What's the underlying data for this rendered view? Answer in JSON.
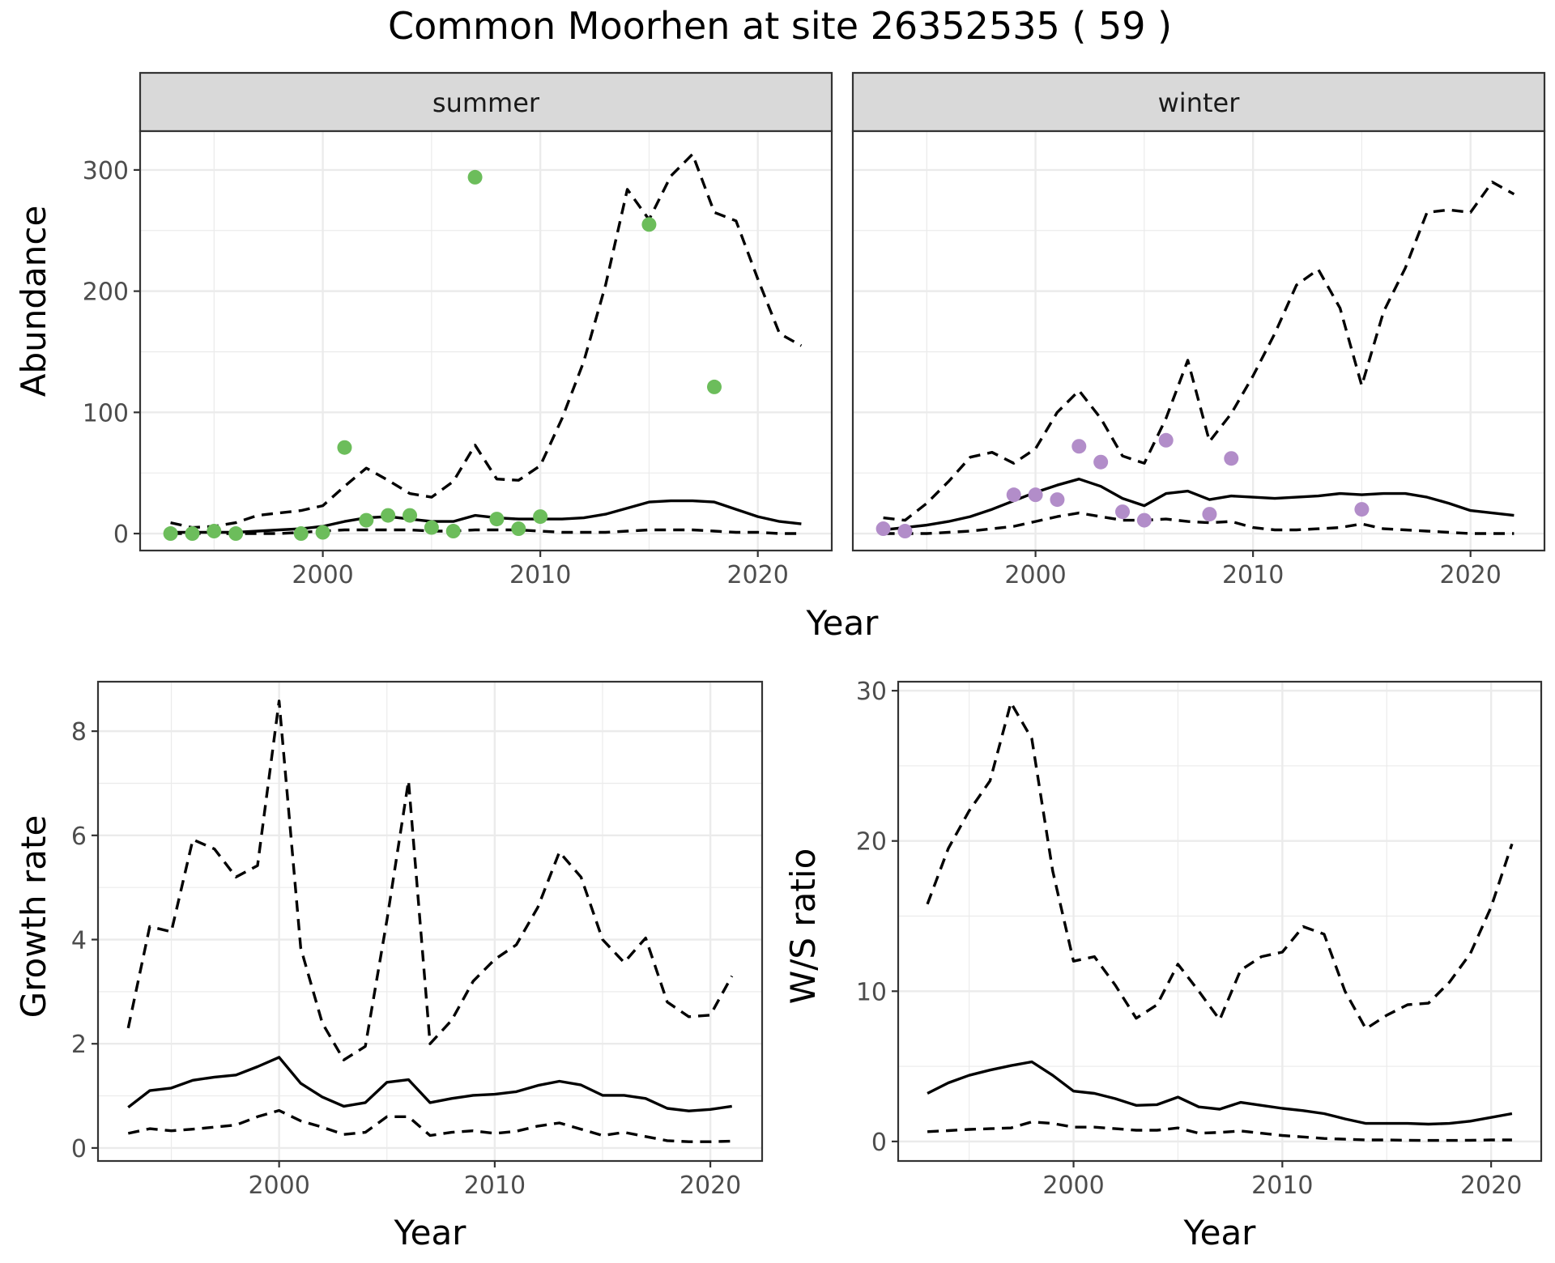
{
  "title": "Common Moorhen at site 26352535 ( 59 )",
  "colors": {
    "summer_points": "#6cbd5b",
    "winter_points": "#b28dc9",
    "lines": "#000000"
  },
  "chart_data": [
    {
      "id": "summer",
      "type": "line",
      "strip": "summer",
      "xlabel": "Year",
      "ylabel": "Abundance",
      "xlim": [
        1991.6,
        2023.4
      ],
      "ylim": [
        -14,
        332
      ],
      "x_ticks": [
        2000,
        2010,
        2020
      ],
      "y_ticks": [
        0,
        100,
        200,
        300
      ],
      "grid": true,
      "series": [
        {
          "style": "solid",
          "x": [
            1993,
            1994,
            1995,
            1996,
            1997,
            1998,
            1999,
            2000,
            2001,
            2002,
            2003,
            2004,
            2005,
            2006,
            2007,
            2008,
            2009,
            2010,
            2011,
            2012,
            2013,
            2014,
            2015,
            2016,
            2017,
            2018,
            2019,
            2020,
            2021,
            2022
          ],
          "y": [
            1,
            1,
            1,
            1,
            2,
            3,
            4,
            6,
            10,
            13,
            14,
            12,
            10,
            10,
            15,
            13,
            12,
            12,
            12,
            13,
            16,
            21,
            26,
            27,
            27,
            26,
            20,
            14,
            10,
            8
          ]
        },
        {
          "style": "dashed",
          "x": [
            1993,
            1994,
            1995,
            1996,
            1997,
            1998,
            1999,
            2000,
            2001,
            2002,
            2003,
            2004,
            2005,
            2006,
            2007,
            2008,
            2009,
            2010,
            2011,
            2012,
            2013,
            2014,
            2015,
            2016,
            2017,
            2018,
            2019,
            2020,
            2021,
            2022
          ],
          "y": [
            9,
            5,
            6,
            9,
            15,
            17,
            19,
            23,
            39,
            54,
            44,
            33,
            30,
            43,
            73,
            45,
            44,
            56,
            95,
            142,
            205,
            284,
            259,
            295,
            313,
            265,
            258,
            210,
            165,
            155
          ]
        },
        {
          "style": "dashed",
          "x": [
            1993,
            1994,
            1995,
            1996,
            1997,
            1998,
            1999,
            2000,
            2001,
            2002,
            2003,
            2004,
            2005,
            2006,
            2007,
            2008,
            2009,
            2010,
            2011,
            2012,
            2013,
            2014,
            2015,
            2016,
            2017,
            2018,
            2019,
            2020,
            2021,
            2022
          ],
          "y": [
            0,
            0,
            0,
            0,
            0,
            0,
            1,
            2,
            3,
            3,
            3,
            3,
            2,
            2,
            3,
            3,
            3,
            2,
            1,
            1,
            1,
            2,
            3,
            3,
            3,
            2,
            1,
            1,
            0,
            0
          ]
        }
      ],
      "points": {
        "x": [
          1993,
          1994,
          1995,
          1996,
          1999,
          2000,
          2001,
          2002,
          2003,
          2004,
          2005,
          2006,
          2007,
          2008,
          2009,
          2010,
          2015,
          2018
        ],
        "y": [
          0,
          0,
          2,
          0,
          0,
          1,
          71,
          11,
          15,
          15,
          5,
          2,
          294,
          12,
          4,
          14,
          255,
          121
        ]
      }
    },
    {
      "id": "winter",
      "type": "line",
      "strip": "winter",
      "xlabel": "Year",
      "ylabel": "",
      "xlim": [
        1991.6,
        2023.4
      ],
      "ylim": [
        -14,
        332
      ],
      "x_ticks": [
        2000,
        2010,
        2020
      ],
      "y_ticks": [
        0,
        100,
        200,
        300
      ],
      "grid": true,
      "series": [
        {
          "style": "solid",
          "x": [
            1993,
            1994,
            1995,
            1996,
            1997,
            1998,
            1999,
            2000,
            2001,
            2002,
            2003,
            2004,
            2005,
            2006,
            2007,
            2008,
            2009,
            2010,
            2011,
            2012,
            2013,
            2014,
            2015,
            2016,
            2017,
            2018,
            2019,
            2020,
            2021,
            2022
          ],
          "y": [
            3,
            5,
            7,
            10,
            14,
            20,
            27,
            34,
            40,
            45,
            39,
            29,
            23,
            33,
            35,
            28,
            31,
            30,
            29,
            30,
            31,
            33,
            32,
            33,
            33,
            30,
            25,
            19,
            17,
            15
          ]
        },
        {
          "style": "dashed",
          "x": [
            1993,
            1994,
            1995,
            1996,
            1997,
            1998,
            1999,
            2000,
            2001,
            2002,
            2003,
            2004,
            2005,
            2006,
            2007,
            2008,
            2009,
            2010,
            2011,
            2012,
            2013,
            2014,
            2015,
            2016,
            2017,
            2018,
            2019,
            2020,
            2021,
            2022
          ],
          "y": [
            13,
            11,
            25,
            43,
            63,
            67,
            58,
            70,
            100,
            118,
            95,
            64,
            58,
            95,
            143,
            76,
            99,
            130,
            165,
            205,
            218,
            186,
            122,
            183,
            219,
            265,
            267,
            265,
            290,
            280
          ]
        },
        {
          "style": "dashed",
          "x": [
            1993,
            1994,
            1995,
            1996,
            1997,
            1998,
            1999,
            2000,
            2001,
            2002,
            2003,
            2004,
            2005,
            2006,
            2007,
            2008,
            2009,
            2010,
            2011,
            2012,
            2013,
            2014,
            2015,
            2016,
            2017,
            2018,
            2019,
            2020,
            2021,
            2022
          ],
          "y": [
            0,
            0,
            0,
            1,
            2,
            4,
            6,
            10,
            14,
            17,
            14,
            11,
            11,
            12,
            10,
            9,
            10,
            5,
            3,
            3,
            4,
            5,
            8,
            4,
            3,
            2,
            1,
            0,
            0,
            0
          ]
        }
      ],
      "points": {
        "x": [
          1993,
          1994,
          1999,
          2000,
          2001,
          2002,
          2003,
          2004,
          2005,
          2006,
          2008,
          2009,
          2015
        ],
        "y": [
          4,
          2,
          32,
          32,
          28,
          72,
          59,
          18,
          11,
          77,
          16,
          62,
          20
        ]
      }
    },
    {
      "id": "growth",
      "type": "line",
      "xlabel": "Year",
      "ylabel": "Growth rate",
      "xlim": [
        1991.6,
        2022.4
      ],
      "ylim": [
        -0.25,
        8.95
      ],
      "x_ticks": [
        2000,
        2010,
        2020
      ],
      "y_ticks": [
        0,
        2,
        4,
        6,
        8
      ],
      "grid": true,
      "series": [
        {
          "style": "solid",
          "x": [
            1993,
            1994,
            1995,
            1996,
            1997,
            1998,
            1999,
            2000,
            2001,
            2002,
            2003,
            2004,
            2005,
            2006,
            2007,
            2008,
            2009,
            2010,
            2011,
            2012,
            2013,
            2014,
            2015,
            2016,
            2017,
            2018,
            2019,
            2020,
            2021
          ],
          "y": [
            0.78,
            1.1,
            1.15,
            1.3,
            1.36,
            1.4,
            1.56,
            1.74,
            1.24,
            0.98,
            0.8,
            0.87,
            1.26,
            1.31,
            0.87,
            0.95,
            1.01,
            1.03,
            1.08,
            1.2,
            1.28,
            1.21,
            1.01,
            1.01,
            0.95,
            0.76,
            0.71,
            0.74,
            0.8
          ]
        },
        {
          "style": "dashed",
          "x": [
            1993,
            1994,
            1995,
            1996,
            1997,
            1998,
            1999,
            2000,
            2001,
            2002,
            2003,
            2004,
            2005,
            2006,
            2007,
            2008,
            2009,
            2010,
            2011,
            2012,
            2013,
            2014,
            2015,
            2016,
            2017,
            2018,
            2019,
            2020,
            2021
          ],
          "y": [
            2.3,
            4.25,
            4.15,
            5.92,
            5.74,
            5.2,
            5.42,
            8.58,
            3.84,
            2.4,
            1.69,
            1.95,
            4.38,
            7.05,
            2.0,
            2.45,
            3.2,
            3.62,
            3.9,
            4.62,
            5.68,
            5.2,
            4.0,
            3.56,
            4.03,
            2.8,
            2.52,
            2.55,
            3.3
          ]
        },
        {
          "style": "dashed",
          "x": [
            1993,
            1994,
            1995,
            1996,
            1997,
            1998,
            1999,
            2000,
            2001,
            2002,
            2003,
            2004,
            2005,
            2006,
            2007,
            2008,
            2009,
            2010,
            2011,
            2012,
            2013,
            2014,
            2015,
            2016,
            2017,
            2018,
            2019,
            2020,
            2021
          ],
          "y": [
            0.28,
            0.37,
            0.33,
            0.36,
            0.4,
            0.44,
            0.6,
            0.72,
            0.52,
            0.4,
            0.26,
            0.3,
            0.6,
            0.6,
            0.24,
            0.3,
            0.33,
            0.28,
            0.32,
            0.42,
            0.48,
            0.36,
            0.24,
            0.3,
            0.22,
            0.14,
            0.12,
            0.12,
            0.13
          ]
        }
      ]
    },
    {
      "id": "ratio",
      "type": "line",
      "xlabel": "Year",
      "ylabel": "W/S ratio",
      "xlim": [
        1991.6,
        2022.4
      ],
      "ylim": [
        -1.3,
        30.6
      ],
      "x_ticks": [
        2000,
        2010,
        2020
      ],
      "y_ticks": [
        0,
        10,
        20,
        30
      ],
      "grid": true,
      "series": [
        {
          "style": "solid",
          "x": [
            1993,
            1994,
            1995,
            1996,
            1997,
            1998,
            1999,
            2000,
            2001,
            2002,
            2003,
            2004,
            2005,
            2006,
            2007,
            2008,
            2009,
            2010,
            2011,
            2012,
            2013,
            2014,
            2015,
            2016,
            2017,
            2018,
            2019,
            2020,
            2021
          ],
          "y": [
            3.2,
            3.9,
            4.4,
            4.75,
            5.05,
            5.3,
            4.4,
            3.35,
            3.2,
            2.85,
            2.4,
            2.45,
            2.95,
            2.3,
            2.15,
            2.6,
            2.4,
            2.2,
            2.05,
            1.85,
            1.5,
            1.2,
            1.2,
            1.2,
            1.15,
            1.2,
            1.35,
            1.6,
            1.85
          ]
        },
        {
          "style": "dashed",
          "x": [
            1993,
            1994,
            1995,
            1996,
            1997,
            1998,
            1999,
            2000,
            2001,
            2002,
            2003,
            2004,
            2005,
            2006,
            2007,
            2008,
            2009,
            2010,
            2011,
            2012,
            2013,
            2014,
            2015,
            2016,
            2017,
            2018,
            2019,
            2020,
            2021
          ],
          "y": [
            15.8,
            19.5,
            22.0,
            24.0,
            29.2,
            26.8,
            18.0,
            12.0,
            12.3,
            10.4,
            8.2,
            9.1,
            11.8,
            10.0,
            8.1,
            11.4,
            12.3,
            12.6,
            14.3,
            13.8,
            10.0,
            7.5,
            8.4,
            9.1,
            9.2,
            10.6,
            12.5,
            15.6,
            19.8
          ]
        },
        {
          "style": "dashed",
          "x": [
            1993,
            1994,
            1995,
            1996,
            1997,
            1998,
            1999,
            2000,
            2001,
            2002,
            2003,
            2004,
            2005,
            2006,
            2007,
            2008,
            2009,
            2010,
            2011,
            2012,
            2013,
            2014,
            2015,
            2016,
            2017,
            2018,
            2019,
            2020,
            2021
          ],
          "y": [
            0.65,
            0.72,
            0.8,
            0.85,
            0.9,
            1.3,
            1.2,
            0.95,
            0.95,
            0.85,
            0.75,
            0.75,
            0.9,
            0.55,
            0.6,
            0.7,
            0.55,
            0.4,
            0.3,
            0.2,
            0.15,
            0.1,
            0.1,
            0.08,
            0.07,
            0.07,
            0.08,
            0.1,
            0.1
          ]
        }
      ]
    }
  ]
}
